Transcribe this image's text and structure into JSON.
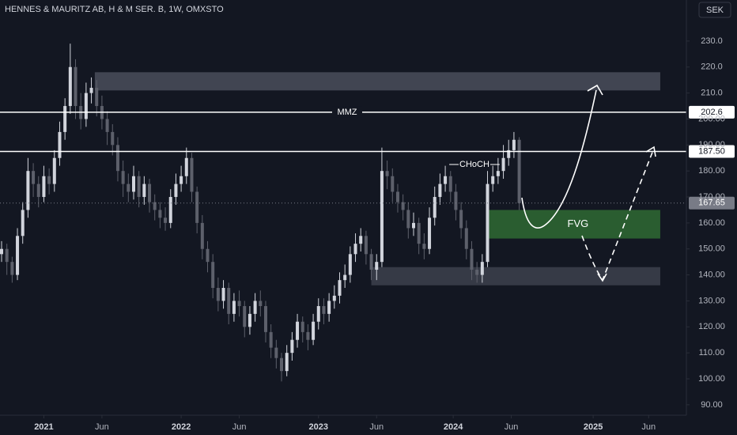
{
  "chart_data": {
    "type": "candlestick",
    "title": "HENNES & MAURITZ AB, H & M SER. B, 1W, OMXSTO",
    "currency": "SEK",
    "up_color": "#d1d4dc",
    "down_color": "#5d606b",
    "xlim": [
      -0.6,
      259.3
    ],
    "ylim": [
      86,
      245.8
    ],
    "xticks": [
      {
        "value": 16,
        "label": "2021"
      },
      {
        "value": 38,
        "label": "Jun"
      },
      {
        "value": 68,
        "label": "2022"
      },
      {
        "value": 90,
        "label": "Jun"
      },
      {
        "value": 120,
        "label": "2023"
      },
      {
        "value": 142,
        "label": "Jun"
      },
      {
        "value": 171,
        "label": "2024"
      },
      {
        "value": 193,
        "label": "Jun"
      },
      {
        "value": 224,
        "label": "2025"
      },
      {
        "value": 245,
        "label": "Jun"
      }
    ],
    "yticks": [
      {
        "value": 230,
        "label": "230.0"
      },
      {
        "value": 220,
        "label": "220.0"
      },
      {
        "value": 210,
        "label": "210.0"
      },
      {
        "value": 200,
        "label": "200.00"
      },
      {
        "value": 190,
        "label": "190.00"
      },
      {
        "value": 180,
        "label": "180.00"
      },
      {
        "value": 170,
        "label": "170.00"
      },
      {
        "value": 160,
        "label": "160.00"
      },
      {
        "value": 150,
        "label": "150.00"
      },
      {
        "value": 140,
        "label": "140.00"
      },
      {
        "value": 130,
        "label": "130.00"
      },
      {
        "value": 120,
        "label": "120.00"
      },
      {
        "value": 110,
        "label": "110.00"
      },
      {
        "value": 100,
        "label": "100.00"
      },
      {
        "value": 90,
        "label": "90.00"
      }
    ],
    "x": [
      0,
      2,
      4,
      6,
      8,
      10,
      12,
      14,
      16,
      18,
      20,
      22,
      24,
      26,
      28,
      30,
      32,
      34,
      36,
      38,
      40,
      42,
      44,
      46,
      48,
      50,
      52,
      54,
      56,
      58,
      60,
      62,
      64,
      66,
      68,
      70,
      72,
      74,
      76,
      78,
      80,
      82,
      84,
      86,
      88,
      90,
      92,
      94,
      96,
      98,
      100,
      102,
      104,
      106,
      108,
      110,
      112,
      114,
      116,
      118,
      120,
      122,
      124,
      126,
      128,
      130,
      132,
      134,
      136,
      138,
      140,
      142,
      144,
      146,
      148,
      150,
      152,
      154,
      156,
      158,
      160,
      162,
      164,
      166,
      168,
      170,
      172,
      174,
      176,
      178,
      180,
      182,
      184,
      186,
      188,
      190,
      192,
      194,
      196
    ],
    "open": [
      148,
      150,
      145,
      140,
      155,
      165,
      180,
      175,
      170,
      178,
      175,
      185,
      195,
      205,
      220,
      205,
      200,
      210,
      212,
      205,
      200,
      195,
      190,
      180,
      175,
      172,
      178,
      170,
      175,
      168,
      165,
      162,
      160,
      170,
      175,
      178,
      185,
      172,
      160,
      150,
      145,
      135,
      130,
      135,
      125,
      130,
      128,
      120,
      125,
      130,
      128,
      118,
      112,
      108,
      103,
      110,
      115,
      122,
      118,
      115,
      122,
      128,
      125,
      130,
      132,
      138,
      140,
      148,
      152,
      155,
      148,
      142,
      145,
      180,
      178,
      172,
      168,
      165,
      158,
      160,
      152,
      150,
      162,
      170,
      175,
      178,
      172,
      165,
      158,
      150,
      142,
      140,
      145,
      175,
      178,
      180,
      185,
      188,
      192
    ],
    "high": [
      153,
      152,
      147,
      158,
      168,
      185,
      183,
      178,
      182,
      181,
      188,
      199,
      208,
      229,
      223,
      210,
      214,
      216,
      215,
      209,
      203,
      198,
      193,
      184,
      179,
      182,
      180,
      178,
      177,
      171,
      168,
      166,
      173,
      179,
      182,
      189,
      187,
      174,
      163,
      153,
      148,
      139,
      138,
      137,
      133,
      134,
      130,
      128,
      133,
      134,
      130,
      121,
      115,
      110,
      113,
      118,
      125,
      124,
      121,
      125,
      131,
      131,
      133,
      136,
      141,
      144,
      151,
      156,
      158,
      157,
      150,
      148,
      189,
      184,
      181,
      175,
      171,
      168,
      164,
      162,
      156,
      166,
      174,
      179,
      182,
      180,
      175,
      168,
      161,
      153,
      145,
      148,
      180,
      182,
      185,
      190,
      192,
      195,
      193
    ],
    "low": [
      145,
      140,
      137,
      138,
      152,
      162,
      170,
      166,
      168,
      171,
      172,
      182,
      192,
      202,
      200,
      196,
      197,
      206,
      201,
      196,
      190,
      186,
      176,
      170,
      168,
      169,
      166,
      167,
      164,
      161,
      158,
      157,
      158,
      167,
      172,
      175,
      168,
      156,
      146,
      141,
      131,
      126,
      127,
      121,
      122,
      124,
      116,
      117,
      122,
      124,
      114,
      108,
      104,
      99,
      101,
      107,
      112,
      114,
      111,
      113,
      119,
      121,
      122,
      127,
      129,
      135,
      137,
      145,
      149,
      144,
      138,
      138,
      143,
      173,
      168,
      164,
      161,
      154,
      155,
      148,
      146,
      148,
      159,
      167,
      172,
      168,
      161,
      154,
      146,
      138,
      137,
      137,
      143,
      172,
      175,
      177,
      182,
      185,
      165
    ],
    "close": [
      150,
      145,
      140,
      155,
      165,
      180,
      175,
      170,
      178,
      175,
      185,
      195,
      205,
      220,
      205,
      200,
      210,
      212,
      205,
      200,
      195,
      190,
      180,
      175,
      172,
      178,
      170,
      175,
      168,
      165,
      162,
      160,
      170,
      175,
      178,
      185,
      172,
      160,
      150,
      145,
      135,
      130,
      135,
      125,
      130,
      128,
      120,
      125,
      130,
      128,
      118,
      112,
      108,
      103,
      110,
      115,
      122,
      118,
      115,
      122,
      128,
      125,
      130,
      132,
      138,
      140,
      148,
      152,
      155,
      148,
      142,
      145,
      180,
      178,
      172,
      168,
      165,
      158,
      160,
      152,
      150,
      162,
      170,
      175,
      178,
      172,
      165,
      158,
      150,
      142,
      140,
      145,
      175,
      178,
      180,
      185,
      188,
      192,
      167.65
    ],
    "levels": [
      {
        "value": 202.6,
        "label": "202.6",
        "name": "MMZ"
      },
      {
        "value": 187.5,
        "label": "187.50"
      }
    ],
    "last_price": {
      "value": 167.65,
      "label": "167.65"
    },
    "zones": [
      {
        "x": [
          35.3,
          249.4
        ],
        "y": [
          211,
          218
        ],
        "color": "#4a4e5a"
      },
      {
        "x": [
          140,
          249.4
        ],
        "y": [
          136,
          143
        ],
        "color": "#3d414c"
      },
      {
        "x": [
          183.5,
          249.4
        ],
        "y": [
          154,
          165
        ],
        "color": "#2f6a33",
        "label": "FVG"
      }
    ],
    "choch": {
      "label": "CHoCH",
      "value": 182.5,
      "x": [
        169.5,
        188.6
      ]
    }
  }
}
